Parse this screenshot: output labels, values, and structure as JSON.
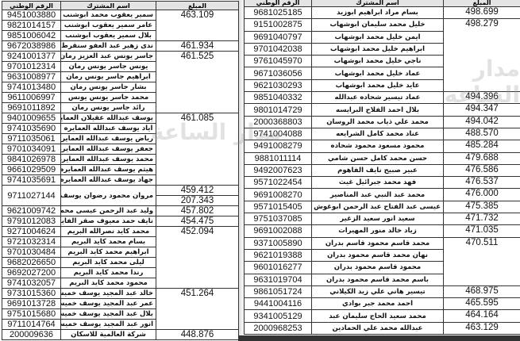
{
  "headers": {
    "id": "الرقم الوطني",
    "name": "اسم المشترك",
    "amount": "المبلغ"
  },
  "watermark": "مدار الساعة",
  "left_table": [
    {
      "amounts": [
        "463.109"
      ],
      "members": [
        {
          "id": "9451003880",
          "name": "سمير يعقوب محمد ابوشنب"
        },
        {
          "id": "9821014157",
          "name": "عامر سمير يعقوب ابوشنب"
        },
        {
          "id": "9851006042",
          "name": "بلال سمير يعقوب ابوشنب"
        }
      ]
    },
    {
      "amounts": [
        "461.934"
      ],
      "members": [
        {
          "id": "9672038986",
          "name": "ندى زهير عبد العفو سنقرط"
        }
      ]
    },
    {
      "amounts": [
        "461.525"
      ],
      "members": [
        {
          "id": "9241001377",
          "name": "جاسر يونس عبد العزيز رمان"
        },
        {
          "id": "9701012314",
          "name": "يونس جاسر يونس رمان"
        },
        {
          "id": "9631008977",
          "name": "ابراهيم جاسر يونس رمان"
        },
        {
          "id": "9741013480",
          "name": "بشار جاسر يونس رمان"
        },
        {
          "id": "9611006997",
          "name": "محمد جاسر يونس يونس"
        },
        {
          "id": "9691011892",
          "name": "رائد جاسر يونس رمان"
        }
      ]
    },
    {
      "amounts": [
        "461.085"
      ],
      "members": [
        {
          "id": "9401009655",
          "name": "يوسف عبدالله عقيلان العمايره"
        },
        {
          "id": "9741035690",
          "name": "اياد يوسف عبدالله العمايره"
        },
        {
          "id": "9711035061",
          "name": "رياض يوسف عبدالله العمايره"
        },
        {
          "id": "9701034091",
          "name": "جعفر يوسف عبدالله العمايره"
        },
        {
          "id": "9841026978",
          "name": "محمد يوسف عبدالله العمايره"
        },
        {
          "id": "9661029509",
          "name": "هيثم يوسف عبدالله العمايره"
        },
        {
          "id": "9741035691",
          "name": "جهاد يوسف عبدالله العمايره"
        }
      ]
    },
    {
      "amounts": [
        "459.412",
        "207.343"
      ],
      "members": [
        {
          "id": "9711027144",
          "name": "مروان محمود رضوان يوسف"
        }
      ]
    },
    {
      "amounts": [
        "457.802"
      ],
      "members": [
        {
          "id": "9621009742",
          "name": "وليد عبد الرحمن عيسى محمد"
        }
      ]
    },
    {
      "amounts": [
        "454.475"
      ],
      "members": [
        {
          "id": "9791012083",
          "name": "نايف حمد معيوف صقر الفايز"
        }
      ]
    },
    {
      "amounts": [
        "452.094"
      ],
      "members": [
        {
          "id": "9271004624",
          "name": "محمد كايد نصرالله البريم"
        },
        {
          "id": "9721032314",
          "name": "بسام محمد كايد البريم"
        },
        {
          "id": "9701030484",
          "name": "ابراهيم محمد كايد البريم"
        },
        {
          "id": "9682026650",
          "name": "ليلى محمد كايد البريم"
        },
        {
          "id": "9692027200",
          "name": "رندا محمد كايد البريم"
        },
        {
          "id": "9741032057",
          "name": "محمود محمد كايد البريم"
        }
      ]
    },
    {
      "amounts": [
        "451.264"
      ],
      "members": [
        {
          "id": "9731015360",
          "name": "خالد عبد المجيد يوسف خميس"
        },
        {
          "id": "9691013728",
          "name": "عمر عبد المجيد يوسف خميس"
        },
        {
          "id": "9751015680",
          "name": "بلال عبد المجيد يوسف خميس"
        },
        {
          "id": "9711014764",
          "name": "انور عبد المجيد يوسف خميس"
        }
      ]
    },
    {
      "amounts": [
        "448.876"
      ],
      "members": [
        {
          "id": "200009636",
          "name": "شركة العالمية للاسكان"
        }
      ]
    }
  ],
  "right_table": [
    {
      "amounts": [
        "498.699"
      ],
      "members": [
        {
          "id": "9681025185",
          "name": "بسام مراد ابراهيم ابوزيد"
        }
      ]
    },
    {
      "amounts": [
        "498.279"
      ],
      "members": [
        {
          "id": "9151002875",
          "name": "خليل محمد سليمان ابوشهاب"
        },
        {
          "id": "9691040797",
          "name": "ايمن خليل محمد ابوشهاب"
        },
        {
          "id": "9701042038",
          "name": "ابراهيم خليل محمد ابوشهاب"
        },
        {
          "id": "9761045970",
          "name": "ناجي خليل محمد ابوشهاب"
        },
        {
          "id": "9671036056",
          "name": "عماد خليل محمد ابوشهاب"
        },
        {
          "id": "9621030293",
          "name": "عايد خليل محمد ابوشهاب"
        }
      ]
    },
    {
      "amounts": [
        "494.396"
      ],
      "members": [
        {
          "id": "9851040332",
          "name": "عماد تيسير شحاده عبدالله"
        }
      ]
    },
    {
      "amounts": [
        "494.347"
      ],
      "members": [
        {
          "id": "9801014729",
          "name": "بلال احمد الفلاح البرايسه"
        }
      ]
    },
    {
      "amounts": [
        "494.042"
      ],
      "members": [
        {
          "id": "2000368803",
          "name": "محمد علي ذياب محمد الروسان"
        }
      ]
    },
    {
      "amounts": [
        "488.570"
      ],
      "members": [
        {
          "id": "9741004088",
          "name": "عناد محمد كامل الشرايعه"
        }
      ]
    },
    {
      "amounts": [
        "485.284"
      ],
      "members": [
        {
          "id": "9491008279",
          "name": "محمود مسعود محمود شحاده"
        }
      ]
    },
    {
      "amounts": [
        "479.688"
      ],
      "members": [
        {
          "id": "9881011114",
          "name": "حسن محمد كامل حسن شامي"
        }
      ]
    },
    {
      "amounts": [
        "476.586"
      ],
      "members": [
        {
          "id": "9492007623",
          "name": "عبير صبيح نايف الفاهوم"
        }
      ]
    },
    {
      "amounts": [
        "476.537"
      ],
      "members": [
        {
          "id": "9571022454",
          "name": "فهد محمد جبرائيل غيث"
        }
      ]
    },
    {
      "amounts": [
        "476.000"
      ],
      "members": [
        {
          "id": "9691008270",
          "name": "محمد عبد النبي عبد المناصير"
        }
      ]
    },
    {
      "amounts": [
        "475.385"
      ],
      "members": [
        {
          "id": "9571015405",
          "name": "عيسى عبد الفتاح عبد الرحمن ابوغوش"
        }
      ]
    },
    {
      "amounts": [
        "471.732"
      ],
      "members": [
        {
          "id": "9751037085",
          "name": "سعيد انور سعيد الزغير"
        }
      ]
    },
    {
      "amounts": [
        "471.035"
      ],
      "members": [
        {
          "id": "9691002088",
          "name": "زياد خالد منور المهيرات"
        }
      ]
    },
    {
      "amounts": [
        "470.511"
      ],
      "members": [
        {
          "id": "9371005890",
          "name": "محمد قاسم محمود قاسم بدران"
        },
        {
          "id": "9621019388",
          "name": "نهان محمد قاسم محمود بدران"
        },
        {
          "id": "9601016277",
          "name": "محمود قاسم محمود بدران"
        },
        {
          "id": "9631019704",
          "name": "باسم محمد قاسم محمود بدران"
        }
      ]
    },
    {
      "amounts": [
        "468.975"
      ],
      "members": [
        {
          "id": "9861051724",
          "name": "تيسير هاني علي زيد الكيلاني"
        }
      ]
    },
    {
      "amounts": [
        "465.595"
      ],
      "members": [
        {
          "id": "9441004116",
          "name": "احمد محمد جبر بوادي"
        }
      ]
    },
    {
      "amounts": [
        "464.164"
      ],
      "members": [
        {
          "id": "9341005129",
          "name": "محمد سعيد الحاج سليمان عبد"
        }
      ]
    },
    {
      "amounts": [
        "463.129"
      ],
      "members": [
        {
          "id": "2000968253",
          "name": "عبدالله محمد علي الحمادين"
        }
      ]
    }
  ]
}
